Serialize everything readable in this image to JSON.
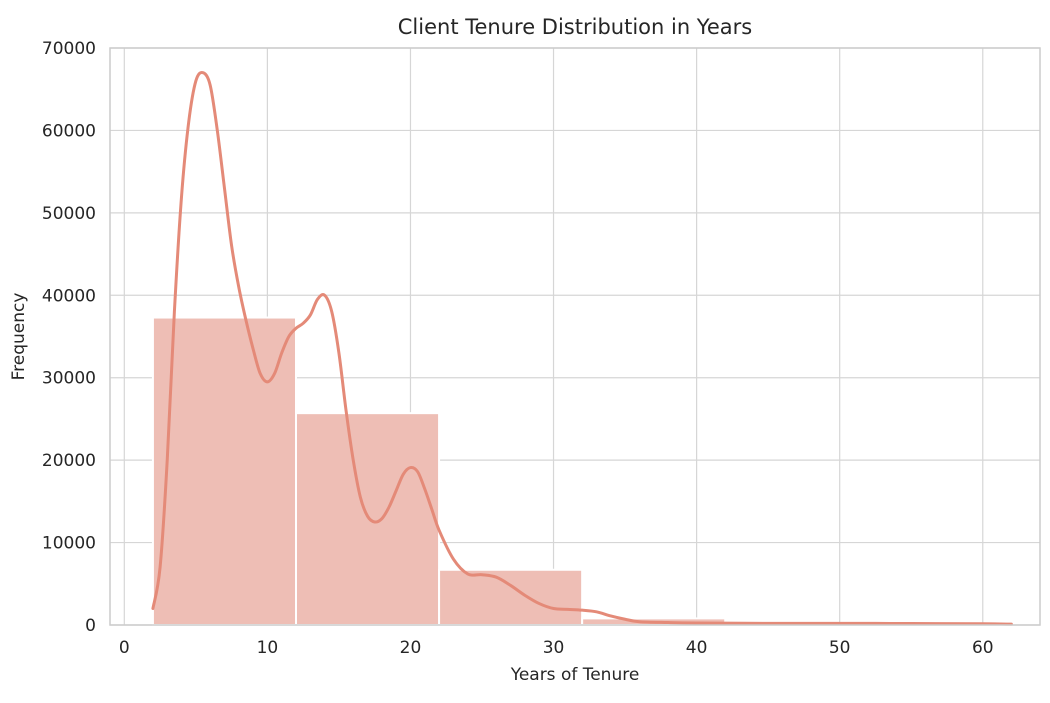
{
  "chart_data": {
    "type": "bar",
    "title": "Client Tenure Distribution in Years",
    "xlabel": "Years of Tenure",
    "ylabel": "Frequency",
    "xlim": [
      -1,
      64
    ],
    "ylim": [
      0,
      70000
    ],
    "xticks": [
      0,
      10,
      20,
      30,
      40,
      50,
      60
    ],
    "yticks": [
      0,
      10000,
      20000,
      30000,
      40000,
      50000,
      60000,
      70000
    ],
    "grid": true,
    "bins": [
      {
        "x0": 2,
        "x1": 12,
        "value": 37300
      },
      {
        "x0": 12,
        "x1": 22,
        "value": 25700
      },
      {
        "x0": 22,
        "x1": 32,
        "value": 6700
      },
      {
        "x0": 32,
        "x1": 42,
        "value": 800
      },
      {
        "x0": 42,
        "x1": 52,
        "value": 150
      },
      {
        "x0": 52,
        "x1": 62,
        "value": 80
      }
    ],
    "kde": {
      "x": [
        2,
        2.5,
        3,
        3.5,
        4,
        4.5,
        5,
        5.5,
        6,
        6.5,
        7,
        7.5,
        8,
        8.5,
        9,
        9.5,
        10,
        10.5,
        11,
        11.5,
        12,
        12.5,
        13,
        13.5,
        14,
        14.5,
        15,
        15.5,
        16,
        16.5,
        17,
        17.5,
        18,
        18.5,
        19,
        19.5,
        20,
        20.5,
        21,
        21.5,
        22,
        23,
        24,
        25,
        26,
        27,
        28,
        29,
        30,
        31,
        32,
        33,
        34,
        35,
        36,
        38,
        40,
        45,
        50,
        55,
        60,
        62
      ],
      "y": [
        2000,
        7000,
        20000,
        38000,
        52000,
        61000,
        66000,
        67000,
        65500,
        60000,
        53000,
        46000,
        41000,
        37000,
        33500,
        30500,
        29500,
        30500,
        33000,
        35000,
        36000,
        36600,
        37600,
        39500,
        40000,
        38000,
        33000,
        26000,
        20000,
        15500,
        13200,
        12500,
        12900,
        14300,
        16300,
        18300,
        19100,
        18600,
        16500,
        14000,
        11500,
        8000,
        6200,
        6100,
        5800,
        4800,
        3600,
        2600,
        2000,
        1900,
        1800,
        1600,
        1100,
        700,
        400,
        300,
        250,
        200,
        200,
        180,
        150,
        100
      ]
    },
    "colors": {
      "bar": "#eebeb5",
      "bar_edge": "#ffffff",
      "line": "#e48a78",
      "grid": "#d6d6d6",
      "frame": "#cccccc"
    }
  }
}
